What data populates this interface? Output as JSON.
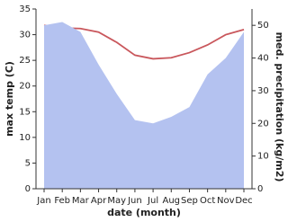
{
  "chart_data": {
    "type": "line",
    "x_label": "date (month)",
    "y_label": "max temp (C)",
    "y2_label": "med. precipitation (kg/m2)",
    "categories": [
      "Jan",
      "Feb",
      "Mar",
      "Apr",
      "May",
      "Jun",
      "Jul",
      "Aug",
      "Sep",
      "Oct",
      "Nov",
      "Dec"
    ],
    "series": [
      {
        "name": "max temp",
        "color": "#c9575c",
        "axis": "y",
        "kind": "line",
        "values": [
          31.8,
          31.3,
          31.2,
          30.5,
          28.5,
          26,
          25.3,
          25.5,
          26.5,
          28,
          30,
          31
        ]
      },
      {
        "name": "med. precipitation",
        "color": "#b4c2f0",
        "axis": "y2",
        "kind": "area",
        "values": [
          50,
          51,
          48,
          38,
          29,
          21,
          20,
          22,
          25,
          35,
          40,
          48
        ]
      }
    ],
    "ylim": [
      0,
      35
    ],
    "yticks": [
      0,
      5,
      10,
      15,
      20,
      25,
      30,
      35
    ],
    "y2lim": [
      0,
      55
    ],
    "y2ticks": [
      0,
      10,
      20,
      30,
      40,
      50
    ]
  }
}
